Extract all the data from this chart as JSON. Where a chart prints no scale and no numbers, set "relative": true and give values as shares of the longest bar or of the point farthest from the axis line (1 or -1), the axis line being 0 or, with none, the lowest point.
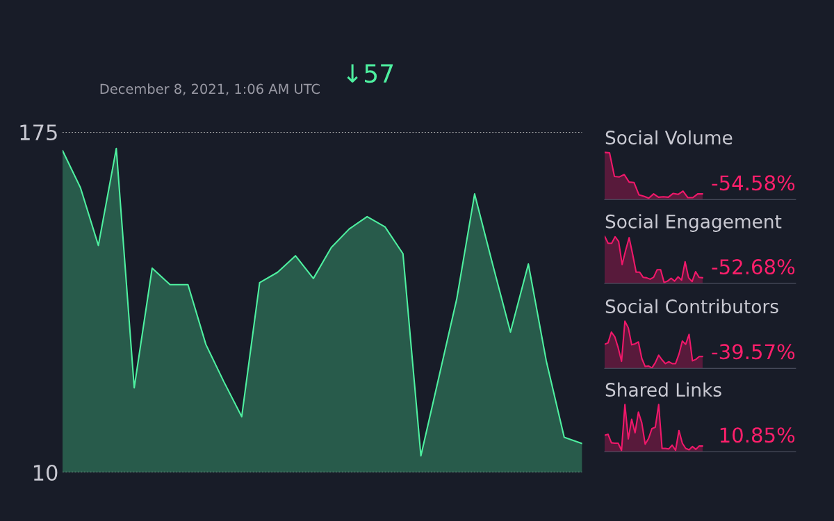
{
  "chart_data": [
    {
      "type": "area",
      "subtitle": "December 8, 2021, 1:06 AM UTC",
      "annotations": [
        "↓57"
      ],
      "categories": [
        null,
        null,
        null,
        null,
        null,
        null,
        null,
        null,
        null,
        null,
        null,
        null,
        null,
        null,
        null,
        null,
        null,
        null,
        null,
        null,
        null,
        null,
        null,
        null,
        null,
        null,
        null,
        null,
        null,
        null
      ],
      "series": [
        {
          "color": "#4ef0a0",
          "values": [
            166,
            148,
            120,
            167,
            51,
            109,
            101,
            101,
            72,
            54,
            37,
            102,
            107,
            115,
            104,
            119,
            128,
            134,
            129,
            116,
            18,
            56,
            94,
            145,
            111,
            78,
            111,
            64,
            27,
            24
          ]
        }
      ],
      "ylim": [
        10,
        175
      ],
      "yticks": [
        10,
        175
      ],
      "grid": "y",
      "tick_labels": "y"
    },
    {
      "type": "area",
      "title": "Social Volume",
      "annotations": [
        "-54.58%"
      ],
      "categories": [
        null,
        null,
        null,
        null,
        null,
        null,
        null,
        null,
        null,
        null,
        null,
        null,
        null,
        null,
        null,
        null,
        null,
        null,
        null,
        null,
        null
      ],
      "values": [
        1.0,
        0.99,
        0.49,
        0.48,
        0.53,
        0.37,
        0.36,
        0.1,
        0.07,
        0.03,
        0.12,
        0.05,
        0.06,
        0.05,
        0.13,
        0.11,
        0.18,
        0.04,
        0.04,
        0.12,
        0.12
      ],
      "color": "#f0186a",
      "relative": true,
      "tick_labels": false
    },
    {
      "type": "area",
      "title": "Social Engagement",
      "annotations": [
        "-52.68%"
      ],
      "categories": [
        null,
        null,
        null,
        null,
        null,
        null,
        null,
        null,
        null,
        null,
        null,
        null,
        null,
        null,
        null,
        null,
        null,
        null,
        null,
        null,
        null,
        null,
        null,
        null,
        null,
        null,
        null,
        null,
        null
      ],
      "values": [
        1.0,
        0.85,
        0.85,
        0.99,
        0.89,
        0.4,
        0.7,
        0.97,
        0.62,
        0.24,
        0.24,
        0.13,
        0.12,
        0.09,
        0.13,
        0.29,
        0.29,
        0.02,
        0.05,
        0.11,
        0.05,
        0.14,
        0.07,
        0.46,
        0.12,
        0.04,
        0.25,
        0.13,
        0.12
      ],
      "color": "#f0186a",
      "relative": true,
      "tick_labels": false
    },
    {
      "type": "area",
      "title": "Social Contributors",
      "annotations": [
        "-39.57%"
      ],
      "categories": [
        null,
        null,
        null,
        null,
        null,
        null,
        null,
        null,
        null,
        null,
        null,
        null,
        null,
        null,
        null,
        null,
        null,
        null,
        null,
        null,
        null,
        null,
        null,
        null,
        null,
        null,
        null,
        null,
        null,
        null
      ],
      "values": [
        0.51,
        0.54,
        0.77,
        0.67,
        0.44,
        0.15,
        1.0,
        0.86,
        0.5,
        0.52,
        0.56,
        0.21,
        0.04,
        0.05,
        0.01,
        0.12,
        0.28,
        0.18,
        0.1,
        0.14,
        0.1,
        0.1,
        0.3,
        0.58,
        0.51,
        0.72,
        0.16,
        0.19,
        0.25,
        0.25
      ],
      "color": "#f0186a",
      "relative": true,
      "tick_labels": false
    },
    {
      "type": "area",
      "title": "Shared Links",
      "annotations": [
        "10.85%"
      ],
      "categories": [
        null,
        null,
        null,
        null,
        null,
        null,
        null,
        null,
        null,
        null,
        null,
        null,
        null,
        null,
        null,
        null,
        null,
        null,
        null,
        null,
        null,
        null,
        null,
        null,
        null,
        null,
        null,
        null,
        null,
        null
      ],
      "values": [
        0.35,
        0.37,
        0.19,
        0.18,
        0.18,
        0.03,
        1.0,
        0.27,
        0.69,
        0.4,
        0.84,
        0.61,
        0.16,
        0.28,
        0.49,
        0.52,
        1.0,
        0.07,
        0.07,
        0.06,
        0.14,
        0.03,
        0.45,
        0.18,
        0.07,
        0.04,
        0.11,
        0.05,
        0.12,
        0.12
      ],
      "color": "#f0186a",
      "relative": true,
      "tick_labels": false
    }
  ]
}
